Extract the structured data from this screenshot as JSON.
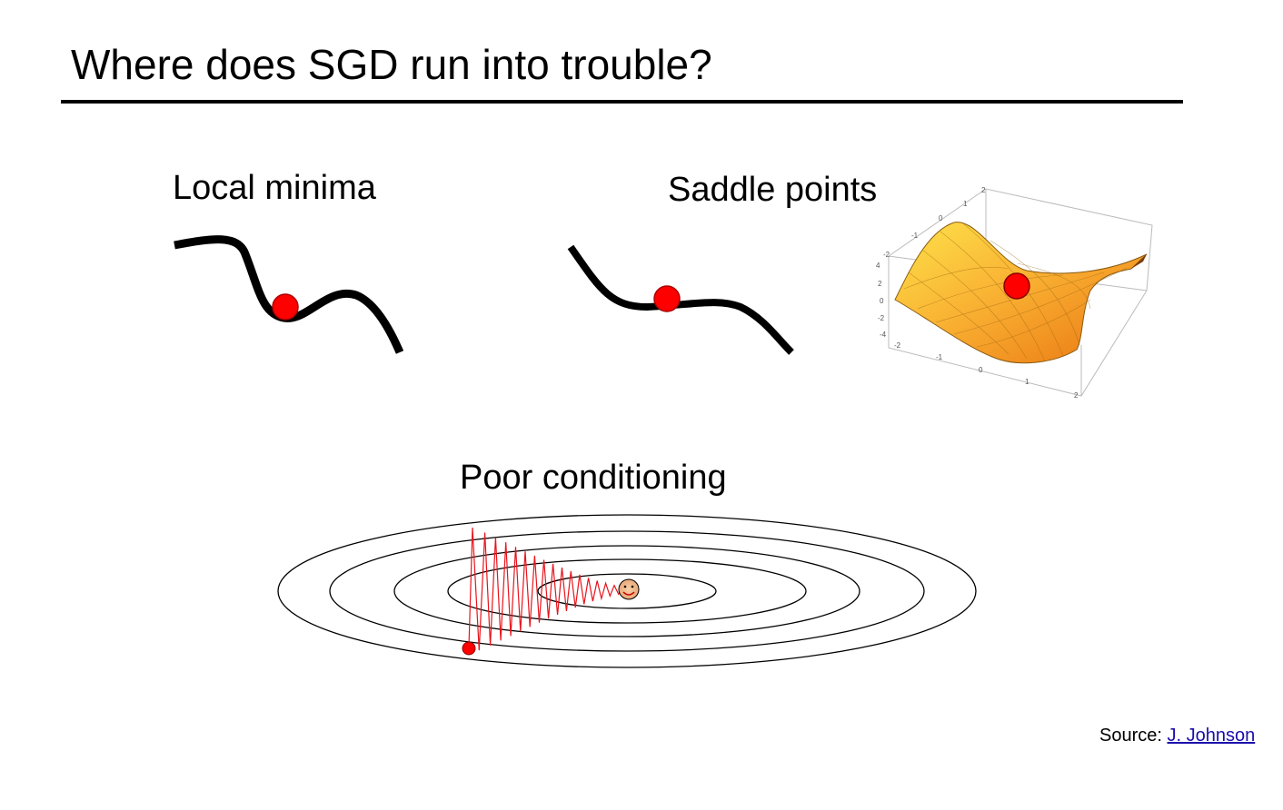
{
  "title": "Where does SGD run into trouble?",
  "panels": {
    "local_minima": {
      "label": "Local minima"
    },
    "saddle_points": {
      "label": "Saddle points",
      "surface_axis_ticks": {
        "back": [
          "2",
          "1",
          "0",
          "-1",
          "-2"
        ],
        "left": [
          "4",
          "2",
          "0",
          "-2",
          "-4"
        ],
        "front": [
          "-2",
          "-1",
          "0",
          "1",
          "2"
        ]
      }
    },
    "poor_conditioning": {
      "label": "Poor conditioning"
    }
  },
  "source": {
    "prefix": "Source:",
    "link_text": "J. Johnson"
  },
  "colors": {
    "ball": "#ff0000",
    "path": "#e8141c",
    "curve": "#000000",
    "link": "#1a0dab"
  }
}
